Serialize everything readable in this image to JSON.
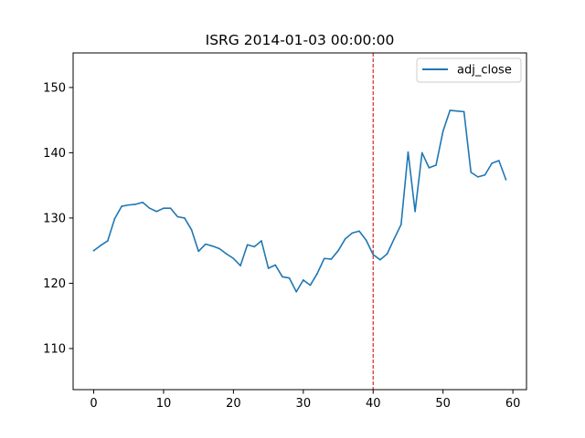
{
  "chart_data": {
    "type": "line",
    "title": "ISRG 2014-01-03 00:00:00",
    "xlabel": "",
    "ylabel": "",
    "xlim": [
      -2.95,
      61.95
    ],
    "ylim": [
      103.7,
      155.3
    ],
    "x_ticks": [
      0,
      10,
      20,
      30,
      40,
      50,
      60
    ],
    "x_tick_labels": [
      "0",
      "10",
      "20",
      "30",
      "40",
      "50",
      "60"
    ],
    "y_ticks": [
      110,
      120,
      130,
      140,
      150
    ],
    "y_tick_labels": [
      "110",
      "120",
      "130",
      "140",
      "150"
    ],
    "grid": false,
    "legend": {
      "placement": "top-right",
      "entries": [
        "adj_close"
      ]
    },
    "series": [
      {
        "name": "adj_close",
        "color": "#1f77b4",
        "x": [
          0,
          1,
          2,
          3,
          4,
          5,
          6,
          7,
          8,
          9,
          10,
          11,
          12,
          13,
          14,
          15,
          16,
          17,
          18,
          19,
          20,
          21,
          22,
          23,
          24,
          25,
          26,
          27,
          28,
          29,
          30,
          31,
          32,
          33,
          34,
          35,
          36,
          37,
          38,
          39,
          40,
          41,
          42,
          43,
          44,
          45,
          46,
          47,
          48,
          49,
          50,
          51,
          52,
          53,
          54,
          55,
          56,
          57,
          58,
          59
        ],
        "values": [
          125.0,
          125.8,
          126.5,
          129.9,
          131.8,
          132.0,
          132.1,
          132.4,
          131.5,
          131.0,
          131.5,
          131.5,
          130.2,
          130.0,
          128.2,
          124.9,
          126.0,
          125.7,
          125.3,
          124.5,
          123.8,
          122.7,
          125.9,
          125.6,
          126.5,
          122.3,
          122.8,
          121.0,
          120.8,
          118.7,
          120.5,
          119.7,
          121.5,
          123.8,
          123.7,
          125.0,
          126.8,
          127.7,
          128.0,
          126.6,
          124.4,
          123.6,
          124.5,
          126.8,
          129.0,
          140.1,
          131.0,
          140.0,
          137.7,
          138.1,
          143.3,
          146.5,
          146.4,
          146.3,
          137.0,
          136.3,
          136.6,
          138.4,
          138.8,
          135.9
        ]
      }
    ],
    "annotations": [
      {
        "type": "vline",
        "x": 40,
        "color": "#d62728",
        "style": "dashed"
      }
    ]
  }
}
